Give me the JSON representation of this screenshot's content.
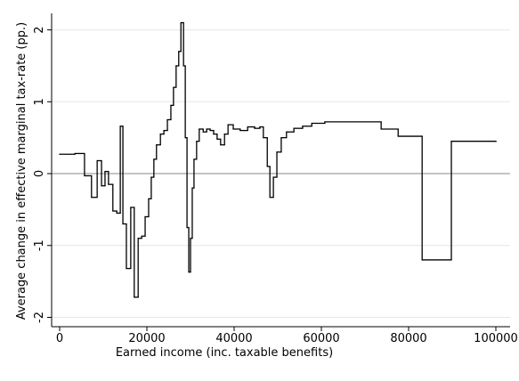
{
  "chart_data": {
    "type": "line",
    "step": "post",
    "x_label": "Earned income (inc. taxable benefits)",
    "y_label": "Average change in effective marginal tax-rate (pp.)",
    "color": "#000000",
    "grid": true,
    "xlim": [
      -1837,
      103265
    ],
    "ylim": [
      -2.13,
      2.23
    ],
    "xticks": [
      0,
      20000,
      40000,
      60000,
      80000,
      100000
    ],
    "yticks": [
      -2,
      -1,
      0,
      1,
      2
    ],
    "x": [
      0,
      3500,
      5700,
      7300,
      8600,
      9600,
      10400,
      11200,
      12200,
      13100,
      13900,
      14500,
      15300,
      16300,
      17100,
      18000,
      18800,
      19600,
      20400,
      21000,
      21600,
      22200,
      23100,
      23900,
      24700,
      25500,
      26100,
      26700,
      27300,
      27800,
      28400,
      28800,
      29200,
      29600,
      30000,
      30400,
      30800,
      31400,
      32000,
      32900,
      33700,
      34500,
      35300,
      36100,
      36900,
      37800,
      38600,
      39800,
      41400,
      43100,
      44700,
      45900,
      46700,
      47600,
      48200,
      49000,
      49800,
      50800,
      52000,
      53700,
      55700,
      57800,
      60800,
      73700,
      77600,
      83100,
      89800,
      100000
    ],
    "values": [
      0.27,
      0.28,
      -0.03,
      -0.33,
      0.18,
      -0.17,
      0.03,
      -0.15,
      -0.52,
      -0.55,
      0.66,
      -0.7,
      -1.32,
      -0.47,
      -1.72,
      -0.9,
      -0.87,
      -0.6,
      -0.35,
      -0.05,
      0.2,
      0.4,
      0.55,
      0.6,
      0.75,
      0.95,
      1.2,
      1.5,
      1.7,
      2.1,
      1.5,
      0.5,
      -0.75,
      -1.37,
      -0.9,
      -0.2,
      0.2,
      0.45,
      0.62,
      0.58,
      0.62,
      0.6,
      0.55,
      0.48,
      0.4,
      0.55,
      0.68,
      0.62,
      0.6,
      0.65,
      0.63,
      0.65,
      0.5,
      0.1,
      -0.33,
      -0.05,
      0.3,
      0.5,
      0.58,
      0.63,
      0.66,
      0.7,
      0.72,
      0.62,
      0.52,
      -1.2,
      0.45,
      0.45
    ]
  }
}
